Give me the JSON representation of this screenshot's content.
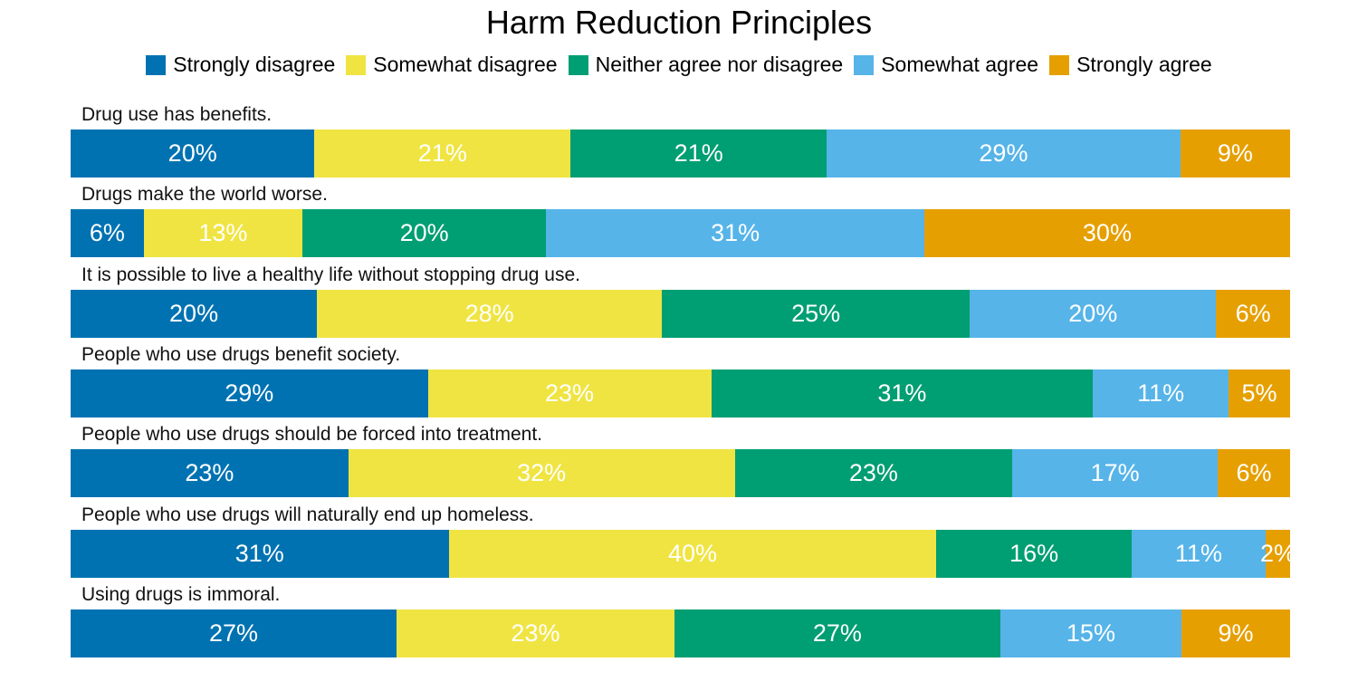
{
  "chart_data": {
    "type": "bar",
    "orientation": "horizontal",
    "stacked": true,
    "normalized": true,
    "title": "Harm Reduction Principles",
    "legend_position": "top",
    "grid": false,
    "categories": [
      "Drug use has benefits.",
      "Drugs make the world worse.",
      "It is possible to live a healthy life without stopping drug use.",
      "People who use drugs benefit society.",
      "People who use drugs should be forced into treatment.",
      "People who use drugs will naturally end up homeless.",
      "Using drugs is immoral."
    ],
    "series": [
      {
        "name": "Strongly disagree",
        "color": "#0072B2",
        "values": [
          20,
          6,
          20,
          29,
          23,
          31,
          27
        ]
      },
      {
        "name": "Somewhat disagree",
        "color": "#F0E442",
        "values": [
          21,
          13,
          28,
          23,
          32,
          40,
          23
        ]
      },
      {
        "name": "Neither agree nor disagree",
        "color": "#009E73",
        "values": [
          21,
          20,
          25,
          31,
          23,
          16,
          27
        ]
      },
      {
        "name": "Somewhat agree",
        "color": "#56B4E9",
        "values": [
          29,
          31,
          20,
          11,
          17,
          11,
          15
        ]
      },
      {
        "name": "Strongly agree",
        "color": "#E69F00",
        "values": [
          9,
          30,
          6,
          5,
          6,
          2,
          9
        ]
      }
    ]
  }
}
